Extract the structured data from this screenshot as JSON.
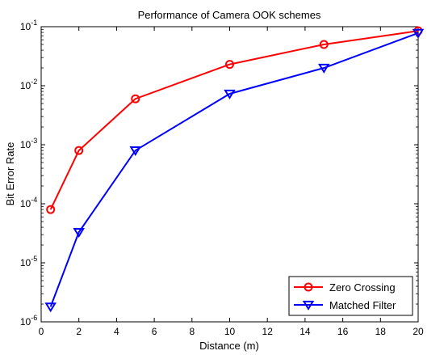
{
  "chart_data": {
    "type": "line",
    "title": "Performance of Camera OOK schemes",
    "xlabel": "Distance (m)",
    "ylabel": "Bit Error Rate",
    "xlim": [
      0,
      20
    ],
    "ylim": [
      1e-06,
      0.1
    ],
    "yscale": "log",
    "grid": false,
    "legend_position": "bottom-right",
    "x_ticks": [
      0,
      2,
      4,
      6,
      8,
      10,
      12,
      14,
      16,
      18,
      20
    ],
    "x_tick_labels": [
      "0",
      "2",
      "4",
      "6",
      "8",
      "10",
      "12",
      "14",
      "16",
      "18",
      "20"
    ],
    "y_ticks": [
      {
        "value": 1e-06,
        "base": "10",
        "exp": "-6"
      },
      {
        "value": 1e-05,
        "base": "10",
        "exp": "-5"
      },
      {
        "value": 0.0001,
        "base": "10",
        "exp": "-4"
      },
      {
        "value": 0.001,
        "base": "10",
        "exp": "-3"
      },
      {
        "value": 0.01,
        "base": "10",
        "exp": "-2"
      },
      {
        "value": 0.1,
        "base": "10",
        "exp": "-1"
      }
    ],
    "series": [
      {
        "name": "Zero Crossing",
        "color": "#ff0000",
        "marker": "circle",
        "x": [
          0.5,
          2,
          5,
          10,
          15,
          20
        ],
        "y": [
          8e-05,
          0.0008,
          0.006,
          0.023,
          0.05,
          0.085
        ]
      },
      {
        "name": "Matched Filter",
        "color": "#0000ff",
        "marker": "triangle-down",
        "x": [
          0.5,
          2,
          5,
          10,
          15,
          20
        ],
        "y": [
          1.8e-06,
          3.3e-05,
          0.0008,
          0.0073,
          0.02,
          0.078
        ]
      }
    ]
  }
}
